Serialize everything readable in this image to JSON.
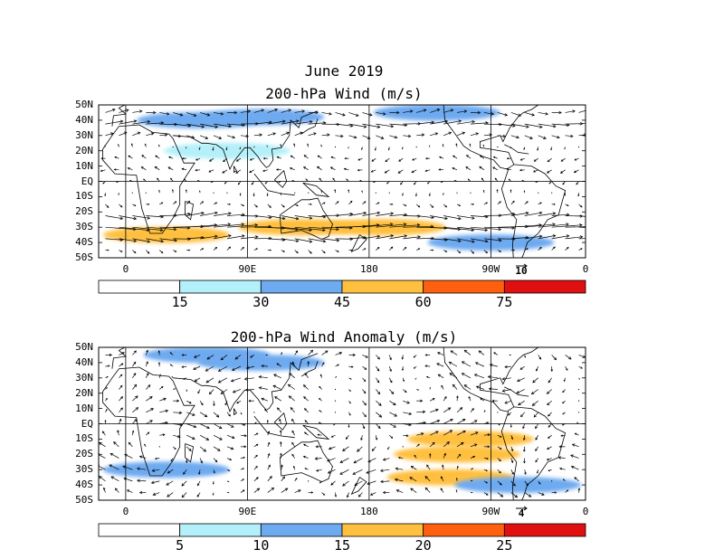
{
  "title": "June 2019",
  "chart_data": [
    {
      "type": "heatmap",
      "title": "200-hPa Wind (m/s)",
      "x_ticks": [
        "0",
        "90E",
        "180",
        "90W",
        "0"
      ],
      "y_ticks": [
        "50N",
        "40N",
        "30N",
        "20N",
        "10N",
        "EQ",
        "10S",
        "20S",
        "30S",
        "40S",
        "50S"
      ],
      "reference_vector_label": "10",
      "colorbar": {
        "levels": [
          "15",
          "30",
          "45",
          "60",
          "75"
        ],
        "colors": [
          "#ffffff",
          "#b4f0fa",
          "#6eaaf0",
          "#ffc040",
          "#ff6010",
          "#e01010"
        ]
      },
      "shaded": [
        {
          "lat": 42,
          "lon": 100,
          "value": 33
        },
        {
          "lat": 40,
          "lon": 55,
          "value": 30
        },
        {
          "lat": 45,
          "lon": 230,
          "value": 30
        },
        {
          "lat": 20,
          "lon": 75,
          "value": 18
        },
        {
          "lat": -30,
          "lon": 130,
          "value": 50
        },
        {
          "lat": -30,
          "lon": 190,
          "value": 52
        },
        {
          "lat": -35,
          "lon": 30,
          "value": 45
        },
        {
          "lat": -40,
          "lon": 270,
          "value": 35
        }
      ]
    },
    {
      "type": "heatmap",
      "title": "200-hPa Wind Anomaly (m/s)",
      "x_ticks": [
        "0",
        "90E",
        "180",
        "90W",
        "0"
      ],
      "y_ticks": [
        "50N",
        "40N",
        "30N",
        "20N",
        "10N",
        "EQ",
        "10S",
        "20S",
        "30S",
        "40S",
        "50S"
      ],
      "reference_vector_label": "4",
      "colorbar": {
        "levels": [
          "5",
          "10",
          "15",
          "20",
          "25"
        ],
        "colors": [
          "#ffffff",
          "#b4f0fa",
          "#6eaaf0",
          "#ffc040",
          "#ff6010",
          "#e01010"
        ]
      },
      "shaded": [
        {
          "lat": 45,
          "lon": 60,
          "value": 10
        },
        {
          "lat": 40,
          "lon": 100,
          "value": 12
        },
        {
          "lat": -10,
          "lon": 255,
          "value": 17
        },
        {
          "lat": -20,
          "lon": 245,
          "value": 16
        },
        {
          "lat": -35,
          "lon": 240,
          "value": 16
        },
        {
          "lat": -30,
          "lon": 30,
          "value": 11
        },
        {
          "lat": -40,
          "lon": 290,
          "value": 12
        }
      ]
    }
  ]
}
